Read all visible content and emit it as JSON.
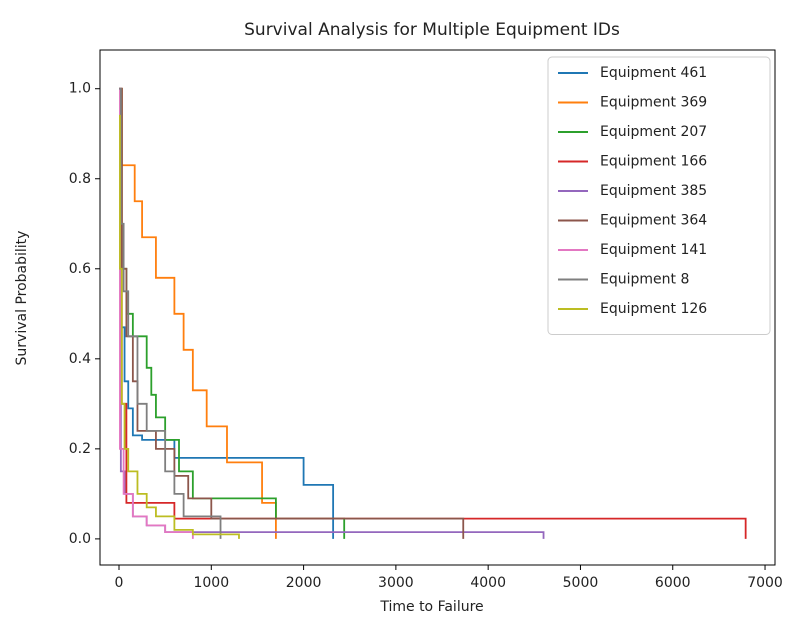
{
  "chart_data": {
    "type": "step",
    "title": "Survival Analysis for Multiple Equipment IDs",
    "x_label": "Time to Failure",
    "y_label": "Survival Probability",
    "xlim": [
      -206,
      7108
    ],
    "ylim": [
      -0.058,
      1.086
    ],
    "xticks": [
      0,
      1000,
      2000,
      3000,
      4000,
      5000,
      6000,
      7000
    ],
    "yticks": [
      {
        "value": 0,
        "label": "0.0"
      },
      0.2,
      0.4,
      0.6,
      0.8,
      {
        "value": 1,
        "label": "1.0"
      }
    ],
    "legend": "upper right",
    "series": [
      {
        "name": "Equipment 461",
        "color": "#1f77b4",
        "x": [
          0,
          20,
          60,
          100,
          150,
          250,
          600,
          2000,
          2320
        ],
        "values": [
          1.0,
          0.47,
          0.35,
          0.29,
          0.23,
          0.22,
          0.18,
          0.12,
          0.0
        ]
      },
      {
        "name": "Equipment 369",
        "color": "#ff7f0e",
        "x": [
          0,
          30,
          170,
          250,
          400,
          600,
          700,
          800,
          950,
          1170,
          1550,
          1700
        ],
        "values": [
          1.0,
          0.83,
          0.75,
          0.67,
          0.58,
          0.5,
          0.42,
          0.33,
          0.25,
          0.17,
          0.08,
          0.0
        ]
      },
      {
        "name": "Equipment 207",
        "color": "#2ca02c",
        "x": [
          0,
          30,
          80,
          150,
          300,
          350,
          400,
          500,
          650,
          800,
          1700,
          2440
        ],
        "values": [
          1.0,
          0.6,
          0.5,
          0.45,
          0.38,
          0.32,
          0.27,
          0.22,
          0.15,
          0.09,
          0.045,
          0.0
        ]
      },
      {
        "name": "Equipment 166",
        "color": "#d62728",
        "x": [
          0,
          30,
          80,
          600,
          6790
        ],
        "values": [
          1.0,
          0.3,
          0.08,
          0.045,
          0.0
        ]
      },
      {
        "name": "Equipment 385",
        "color": "#9467bd",
        "x": [
          0,
          20,
          60,
          150,
          300,
          500,
          4600
        ],
        "values": [
          1.0,
          0.15,
          0.1,
          0.05,
          0.03,
          0.015,
          0.0
        ]
      },
      {
        "name": "Equipment 364",
        "color": "#8c564b",
        "x": [
          0,
          30,
          80,
          150,
          200,
          400,
          600,
          750,
          1000,
          3730
        ],
        "values": [
          1.0,
          0.6,
          0.45,
          0.35,
          0.24,
          0.2,
          0.14,
          0.09,
          0.045,
          0.0
        ]
      },
      {
        "name": "Equipment 141",
        "color": "#e377c2",
        "x": [
          0,
          10,
          50,
          150,
          300,
          500,
          800
        ],
        "values": [
          1.0,
          0.2,
          0.1,
          0.05,
          0.03,
          0.015,
          0.0
        ]
      },
      {
        "name": "Equipment 8",
        "color": "#7f7f7f",
        "x": [
          0,
          20,
          50,
          100,
          200,
          300,
          500,
          600,
          700,
          1100
        ],
        "values": [
          1.0,
          0.7,
          0.55,
          0.45,
          0.3,
          0.24,
          0.15,
          0.1,
          0.05,
          0.0
        ]
      },
      {
        "name": "Equipment 126",
        "color": "#bcbd22",
        "x": [
          0,
          10,
          30,
          60,
          100,
          200,
          300,
          400,
          600,
          800,
          1300
        ],
        "values": [
          0.94,
          0.6,
          0.3,
          0.2,
          0.15,
          0.1,
          0.07,
          0.05,
          0.02,
          0.01,
          0.0
        ]
      }
    ]
  }
}
